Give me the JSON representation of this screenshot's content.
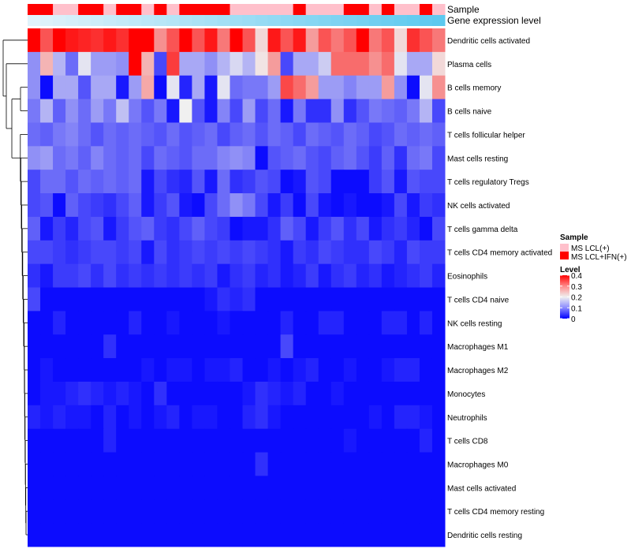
{
  "chart_data": {
    "type": "heatmap",
    "annotations": [
      {
        "name": "Sample"
      },
      {
        "name": "Gene expression level"
      }
    ],
    "rows": [
      "Dendritic cells activated",
      "Plasma cells",
      "B cells memory",
      "B cells naive",
      "T cells follicular helper",
      "Mast cells resting",
      "T cells regulatory  Tregs",
      "NK cells activated",
      "T cells gamma delta",
      "T cells CD4 memory activated",
      "Eosinophils",
      "T cells CD4 naive",
      "NK cells resting",
      "Macrophages M1",
      "Macrophages M2",
      "Monocytes",
      "Neutrophils",
      "T cells CD8",
      "Macrophages M0",
      "Mast cells activated",
      "T cells CD4 memory resting",
      "Dendritic cells resting"
    ],
    "sample_annotation": [
      1,
      1,
      0,
      0,
      1,
      1,
      0,
      1,
      1,
      0,
      1,
      0,
      1,
      1,
      1,
      1,
      0,
      0,
      0,
      0,
      0,
      1,
      0,
      0,
      0,
      1,
      1,
      0,
      1,
      0,
      0,
      1,
      0
    ],
    "expression_annotation": [
      0.02,
      0.05,
      0.08,
      0.11,
      0.14,
      0.17,
      0.2,
      0.23,
      0.26,
      0.29,
      0.32,
      0.35,
      0.38,
      0.41,
      0.44,
      0.47,
      0.5,
      0.53,
      0.56,
      0.59,
      0.62,
      0.65,
      0.68,
      0.71,
      0.74,
      0.77,
      0.8,
      0.83,
      0.86,
      0.89,
      0.92,
      0.95,
      0.98
    ],
    "values": [
      [
        0.4,
        0.33,
        0.4,
        0.38,
        0.37,
        0.36,
        0.38,
        0.36,
        0.4,
        0.4,
        0.28,
        0.33,
        0.4,
        0.33,
        0.38,
        0.3,
        0.4,
        0.33,
        0.22,
        0.38,
        0.33,
        0.38,
        0.27,
        0.33,
        0.3,
        0.33,
        0.4,
        0.3,
        0.33,
        0.22,
        0.36,
        0.33,
        0.3
      ],
      [
        0.12,
        0.25,
        0.15,
        0.09,
        0.19,
        0.13,
        0.13,
        0.12,
        0.4,
        0.25,
        0.06,
        0.35,
        0.14,
        0.14,
        0.12,
        0.15,
        0.18,
        0.15,
        0.21,
        0.27,
        0.06,
        0.14,
        0.14,
        0.17,
        0.31,
        0.31,
        0.31,
        0.28,
        0.31,
        0.19,
        0.14,
        0.14,
        0.22
      ],
      [
        0.12,
        0.01,
        0.14,
        0.14,
        0.07,
        0.14,
        0.14,
        0.02,
        0.13,
        0.26,
        0.01,
        0.19,
        0.03,
        0.14,
        0.02,
        0.19,
        0.09,
        0.1,
        0.1,
        0.13,
        0.34,
        0.31,
        0.27,
        0.13,
        0.13,
        0.11,
        0.13,
        0.13,
        0.27,
        0.12,
        0.01,
        0.19,
        0.28
      ],
      [
        0.1,
        0.15,
        0.08,
        0.12,
        0.09,
        0.13,
        0.1,
        0.16,
        0.1,
        0.07,
        0.1,
        0.02,
        0.2,
        0.07,
        0.02,
        0.11,
        0.06,
        0.13,
        0.06,
        0.09,
        0.02,
        0.1,
        0.04,
        0.04,
        0.12,
        0.04,
        0.07,
        0.1,
        0.09,
        0.08,
        0.1,
        0.15,
        0.06
      ],
      [
        0.09,
        0.08,
        0.1,
        0.11,
        0.09,
        0.07,
        0.09,
        0.08,
        0.09,
        0.08,
        0.07,
        0.09,
        0.07,
        0.08,
        0.09,
        0.06,
        0.08,
        0.09,
        0.07,
        0.09,
        0.08,
        0.06,
        0.09,
        0.08,
        0.07,
        0.09,
        0.08,
        0.06,
        0.07,
        0.09,
        0.08,
        0.09,
        0.08
      ],
      [
        0.12,
        0.13,
        0.09,
        0.1,
        0.08,
        0.11,
        0.09,
        0.08,
        0.09,
        0.06,
        0.09,
        0.08,
        0.07,
        0.09,
        0.09,
        0.11,
        0.12,
        0.11,
        0.01,
        0.07,
        0.08,
        0.09,
        0.07,
        0.06,
        0.08,
        0.09,
        0.07,
        0.05,
        0.08,
        0.04,
        0.09,
        0.1,
        0.06
      ],
      [
        0.06,
        0.09,
        0.09,
        0.07,
        0.09,
        0.08,
        0.09,
        0.08,
        0.09,
        0.02,
        0.06,
        0.04,
        0.03,
        0.07,
        0.02,
        0.09,
        0.04,
        0.05,
        0.07,
        0.06,
        0.01,
        0.02,
        0.07,
        0.06,
        0.01,
        0.01,
        0.01,
        0.05,
        0.07,
        0.02,
        0.07,
        0.06,
        0.06
      ],
      [
        0.06,
        0.07,
        0.01,
        0.08,
        0.06,
        0.05,
        0.04,
        0.06,
        0.08,
        0.02,
        0.05,
        0.07,
        0.02,
        0.01,
        0.06,
        0.09,
        0.12,
        0.1,
        0.06,
        0.02,
        0.05,
        0.01,
        0.06,
        0.02,
        0.01,
        0.02,
        0.01,
        0.01,
        0.02,
        0.06,
        0.02,
        0.05,
        0.04
      ],
      [
        0.08,
        0.02,
        0.05,
        0.03,
        0.06,
        0.07,
        0.02,
        0.05,
        0.07,
        0.08,
        0.05,
        0.04,
        0.06,
        0.08,
        0.06,
        0.05,
        0.01,
        0.02,
        0.02,
        0.04,
        0.08,
        0.06,
        0.02,
        0.05,
        0.07,
        0.04,
        0.06,
        0.02,
        0.04,
        0.05,
        0.03,
        0.01,
        0.06
      ],
      [
        0.06,
        0.06,
        0.05,
        0.04,
        0.05,
        0.06,
        0.06,
        0.05,
        0.06,
        0.02,
        0.06,
        0.04,
        0.05,
        0.06,
        0.05,
        0.06,
        0.05,
        0.06,
        0.05,
        0.04,
        0.02,
        0.05,
        0.04,
        0.06,
        0.05,
        0.04,
        0.04,
        0.06,
        0.05,
        0.03,
        0.06,
        0.05,
        0.05
      ],
      [
        0.04,
        0.02,
        0.05,
        0.05,
        0.06,
        0.04,
        0.06,
        0.04,
        0.05,
        0.04,
        0.05,
        0.04,
        0.05,
        0.04,
        0.05,
        0.02,
        0.04,
        0.05,
        0.03,
        0.04,
        0.02,
        0.03,
        0.05,
        0.02,
        0.04,
        0.05,
        0.03,
        0.04,
        0.02,
        0.03,
        0.04,
        0.05,
        0.03
      ],
      [
        0.06,
        0.01,
        0.01,
        0.01,
        0.01,
        0.01,
        0.01,
        0.01,
        0.01,
        0.01,
        0.01,
        0.01,
        0.01,
        0.01,
        0.02,
        0.04,
        0.03,
        0.04,
        0.01,
        0.01,
        0.01,
        0.01,
        0.01,
        0.01,
        0.01,
        0.01,
        0.01,
        0.01,
        0.01,
        0.01,
        0.01,
        0.01,
        0.01
      ],
      [
        0.01,
        0.01,
        0.03,
        0.01,
        0.01,
        0.01,
        0.01,
        0.01,
        0.03,
        0.01,
        0.01,
        0.02,
        0.01,
        0.01,
        0.01,
        0.02,
        0.01,
        0.01,
        0.01,
        0.01,
        0.03,
        0.01,
        0.01,
        0.03,
        0.03,
        0.01,
        0.01,
        0.01,
        0.03,
        0.03,
        0.01,
        0.03,
        0.01
      ],
      [
        0.01,
        0.01,
        0.01,
        0.01,
        0.01,
        0.01,
        0.04,
        0.01,
        0.01,
        0.01,
        0.01,
        0.01,
        0.01,
        0.01,
        0.01,
        0.01,
        0.01,
        0.01,
        0.01,
        0.01,
        0.06,
        0.01,
        0.01,
        0.01,
        0.01,
        0.01,
        0.01,
        0.01,
        0.01,
        0.01,
        0.01,
        0.01,
        0.01
      ],
      [
        0.01,
        0.02,
        0.01,
        0.01,
        0.01,
        0.01,
        0.01,
        0.01,
        0.01,
        0.02,
        0.01,
        0.02,
        0.02,
        0.01,
        0.02,
        0.02,
        0.03,
        0.01,
        0.01,
        0.02,
        0.01,
        0.02,
        0.03,
        0.01,
        0.01,
        0.02,
        0.01,
        0.01,
        0.02,
        0.03,
        0.03,
        0.01,
        0.01
      ],
      [
        0.01,
        0.02,
        0.02,
        0.03,
        0.04,
        0.03,
        0.02,
        0.03,
        0.02,
        0.01,
        0.04,
        0.01,
        0.01,
        0.01,
        0.01,
        0.01,
        0.01,
        0.02,
        0.04,
        0.03,
        0.02,
        0.03,
        0.01,
        0.01,
        0.02,
        0.01,
        0.01,
        0.01,
        0.01,
        0.01,
        0.01,
        0.01,
        0.01
      ],
      [
        0.03,
        0.02,
        0.03,
        0.02,
        0.02,
        0.01,
        0.03,
        0.01,
        0.02,
        0.01,
        0.02,
        0.03,
        0.01,
        0.02,
        0.02,
        0.01,
        0.01,
        0.03,
        0.04,
        0.02,
        0.01,
        0.01,
        0.01,
        0.01,
        0.01,
        0.01,
        0.01,
        0.02,
        0.01,
        0.03,
        0.03,
        0.02,
        0.01
      ],
      [
        0.01,
        0.01,
        0.01,
        0.01,
        0.01,
        0.01,
        0.03,
        0.01,
        0.01,
        0.01,
        0.01,
        0.01,
        0.01,
        0.01,
        0.01,
        0.01,
        0.01,
        0.01,
        0.01,
        0.01,
        0.01,
        0.01,
        0.01,
        0.01,
        0.01,
        0.02,
        0.01,
        0.01,
        0.01,
        0.01,
        0.01,
        0.03,
        0.01
      ],
      [
        0.01,
        0.01,
        0.01,
        0.01,
        0.01,
        0.01,
        0.01,
        0.01,
        0.01,
        0.01,
        0.01,
        0.01,
        0.01,
        0.01,
        0.01,
        0.01,
        0.01,
        0.01,
        0.04,
        0.01,
        0.01,
        0.01,
        0.01,
        0.01,
        0.01,
        0.01,
        0.01,
        0.01,
        0.01,
        0.01,
        0.01,
        0.01,
        0.01
      ],
      [
        0.01,
        0.01,
        0.01,
        0.01,
        0.01,
        0.01,
        0.01,
        0.01,
        0.01,
        0.01,
        0.01,
        0.01,
        0.01,
        0.01,
        0.01,
        0.01,
        0.01,
        0.01,
        0.01,
        0.01,
        0.01,
        0.01,
        0.01,
        0.01,
        0.01,
        0.01,
        0.01,
        0.01,
        0.01,
        0.01,
        0.01,
        0.01,
        0.01
      ],
      [
        0.01,
        0.01,
        0.01,
        0.01,
        0.01,
        0.01,
        0.01,
        0.01,
        0.01,
        0.01,
        0.01,
        0.01,
        0.01,
        0.01,
        0.01,
        0.01,
        0.01,
        0.01,
        0.01,
        0.01,
        0.01,
        0.01,
        0.01,
        0.01,
        0.01,
        0.01,
        0.01,
        0.01,
        0.01,
        0.01,
        0.01,
        0.01,
        0.01
      ],
      [
        0.01,
        0.01,
        0.01,
        0.01,
        0.01,
        0.01,
        0.01,
        0.01,
        0.01,
        0.01,
        0.01,
        0.01,
        0.01,
        0.01,
        0.01,
        0.01,
        0.01,
        0.01,
        0.01,
        0.01,
        0.01,
        0.01,
        0.01,
        0.01,
        0.01,
        0.01,
        0.01,
        0.01,
        0.01,
        0.01,
        0.01,
        0.01,
        0.01
      ]
    ],
    "color_range": [
      0,
      0.4
    ],
    "colors": {
      "low": "#0000ff",
      "mid": "#f0f0f0",
      "high": "#ff0000"
    },
    "annotation_colors": {
      "sample": [
        "#ffc0cb",
        "#ff0000"
      ],
      "expression_low": "#e4f4fb",
      "expression_high": "#5ac8ef"
    },
    "legends": {
      "sample": {
        "title": "Sample",
        "entries": [
          "MS LCL(+)",
          "MS LCL+IFN(+)"
        ]
      },
      "level": {
        "title": "Level",
        "ticks": [
          "0.4",
          "0.3",
          "0.2",
          "0.1",
          "0"
        ],
        "tick_values": [
          0.4,
          0.3,
          0.2,
          0.1,
          0
        ]
      }
    },
    "row_dendrogram": true
  }
}
